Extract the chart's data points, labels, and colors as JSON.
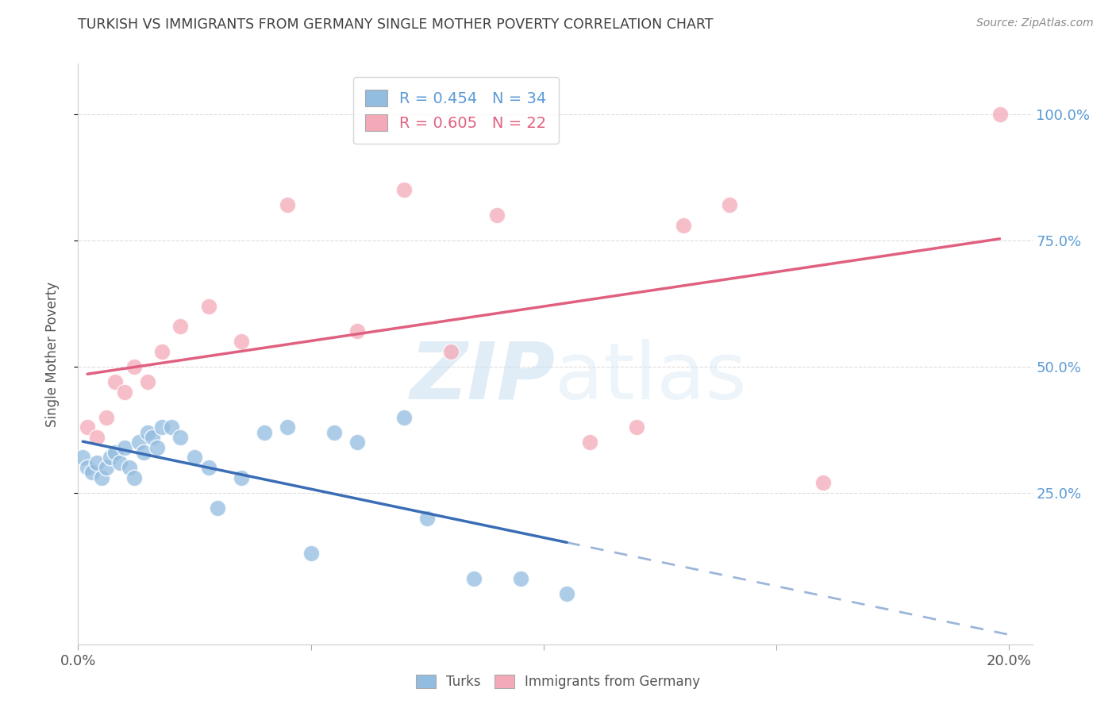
{
  "title": "TURKISH VS IMMIGRANTS FROM GERMANY SINGLE MOTHER POVERTY CORRELATION CHART",
  "source": "Source: ZipAtlas.com",
  "ylabel": "Single Mother Poverty",
  "right_yticks": [
    "100.0%",
    "75.0%",
    "50.0%",
    "25.0%"
  ],
  "right_ytick_vals": [
    1.0,
    0.75,
    0.5,
    0.25
  ],
  "watermark_zip": "ZIP",
  "watermark_atlas": "atlas",
  "blue_color": "#92bce0",
  "pink_color": "#f4a9b8",
  "blue_line_color": "#3b6db5",
  "pink_line_color": "#e06080",
  "right_axis_color": "#5b9bd5",
  "title_color": "#404040",
  "grid_color": "#dddddd",
  "blue_R": 0.454,
  "blue_N": 34,
  "pink_R": 0.605,
  "pink_N": 22,
  "turks_x": [
    0.1,
    0.2,
    0.3,
    0.4,
    0.5,
    0.6,
    0.7,
    0.8,
    0.9,
    1.0,
    1.1,
    1.2,
    1.3,
    1.4,
    1.5,
    1.6,
    1.7,
    1.8,
    2.0,
    2.2,
    2.5,
    2.8,
    3.0,
    3.5,
    4.0,
    4.5,
    5.0,
    5.5,
    6.0,
    7.0,
    7.5,
    8.5,
    9.5,
    10.5
  ],
  "turks_y": [
    0.32,
    0.3,
    0.29,
    0.31,
    0.28,
    0.3,
    0.32,
    0.33,
    0.31,
    0.34,
    0.3,
    0.28,
    0.35,
    0.33,
    0.37,
    0.36,
    0.34,
    0.38,
    0.38,
    0.36,
    0.32,
    0.3,
    0.22,
    0.28,
    0.37,
    0.38,
    0.13,
    0.37,
    0.35,
    0.4,
    0.2,
    0.08,
    0.08,
    0.05
  ],
  "germany_x": [
    0.2,
    0.4,
    0.6,
    0.8,
    1.0,
    1.2,
    1.5,
    1.8,
    2.2,
    2.8,
    3.5,
    4.5,
    6.0,
    7.0,
    8.0,
    9.0,
    11.0,
    12.0,
    13.0,
    14.0,
    16.0,
    19.8
  ],
  "germany_y": [
    0.38,
    0.36,
    0.4,
    0.47,
    0.45,
    0.5,
    0.47,
    0.53,
    0.58,
    0.62,
    0.55,
    0.82,
    0.57,
    0.85,
    0.53,
    0.8,
    0.35,
    0.38,
    0.78,
    0.82,
    0.27,
    1.0
  ],
  "xlim": [
    0.0,
    20.5
  ],
  "ylim": [
    -0.05,
    1.1
  ]
}
